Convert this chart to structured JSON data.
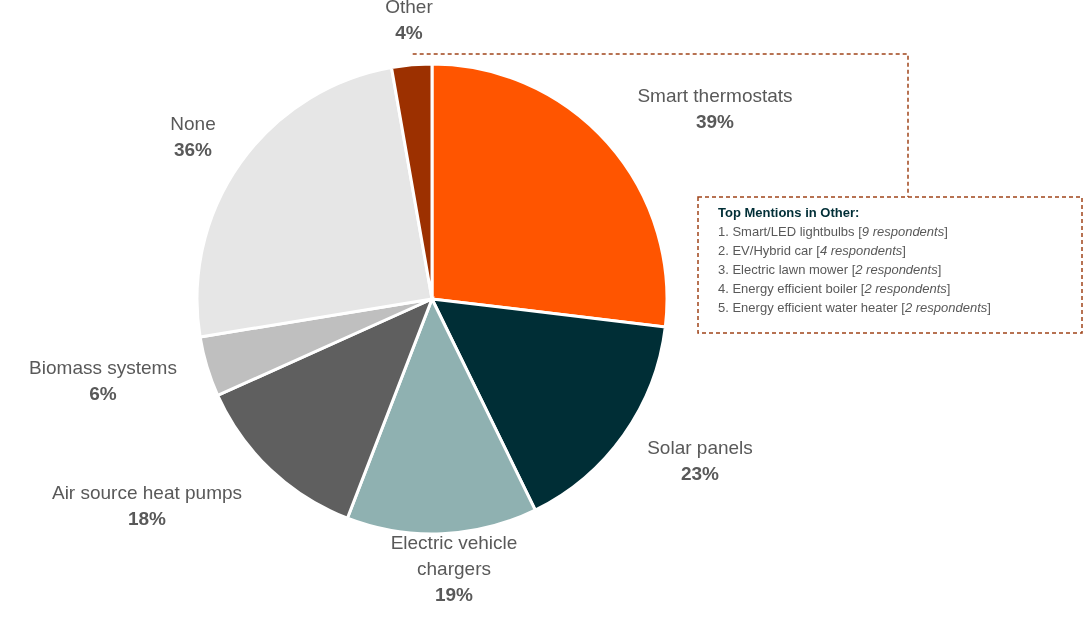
{
  "chart_data": {
    "type": "pie",
    "categories": [
      "Smart thermostats",
      "Solar panels",
      "Electric vehicle chargers",
      "Air source heat pumps",
      "Biomass systems",
      "None",
      "Other"
    ],
    "values": [
      39,
      23,
      19,
      18,
      6,
      36,
      4
    ],
    "value_labels": [
      "39%",
      "23%",
      "19%",
      "18%",
      "6%",
      "36%",
      "4%"
    ],
    "colors": [
      "#ff5500",
      "#002e36",
      "#8fb1b1",
      "#5f5f5f",
      "#bfbfbf",
      "#e6e6e6",
      "#9c3000"
    ],
    "annotations": [
      "Top Mentions in Other:",
      "1. Smart/LED lightbulbs [9 respondents]",
      "2. EV/Hybrid car [4 respondents]",
      "3. Electric lawn mower [2 respondents]",
      "4. Energy efficient boiler [2 respondents]",
      "5. Energy efficient water heater [2 respondents]"
    ]
  }
}
